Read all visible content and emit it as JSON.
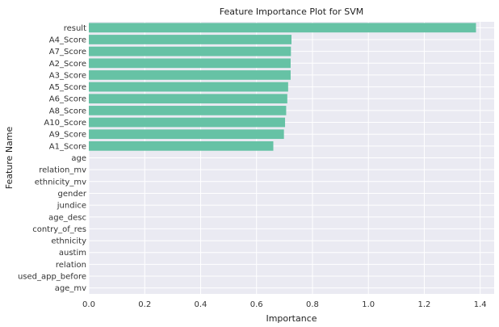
{
  "chart_data": {
    "type": "bar",
    "orientation": "horizontal",
    "title": "Feature Importance Plot for SVM",
    "xlabel": "Importance",
    "ylabel": "Feature Name",
    "xlim": [
      0,
      1.45
    ],
    "xticks": [
      0.0,
      0.2,
      0.4,
      0.6,
      0.8,
      1.0,
      1.2,
      1.4
    ],
    "xtick_labels": [
      "0.0",
      "0.2",
      "0.4",
      "0.6",
      "0.8",
      "1.0",
      "1.2",
      "1.4"
    ],
    "grid": true,
    "bar_color": "#66c2a5",
    "background_color": "#eaeaf2",
    "categories": [
      "result",
      "A4_Score",
      "A7_Score",
      "A2_Score",
      "A3_Score",
      "A5_Score",
      "A6_Score",
      "A8_Score",
      "A10_Score",
      "A9_Score",
      "A1_Score",
      "age",
      "relation_mv",
      "ethnicity_mv",
      "gender",
      "jundice",
      "age_desc",
      "contry_of_res",
      "ethnicity",
      "austim",
      "relation",
      "used_app_before",
      "age_mv"
    ],
    "values": [
      1.385,
      0.725,
      0.723,
      0.722,
      0.722,
      0.713,
      0.71,
      0.706,
      0.702,
      0.698,
      0.66,
      0,
      0,
      0,
      0,
      0,
      0,
      0,
      0,
      0,
      0,
      0,
      0
    ]
  }
}
